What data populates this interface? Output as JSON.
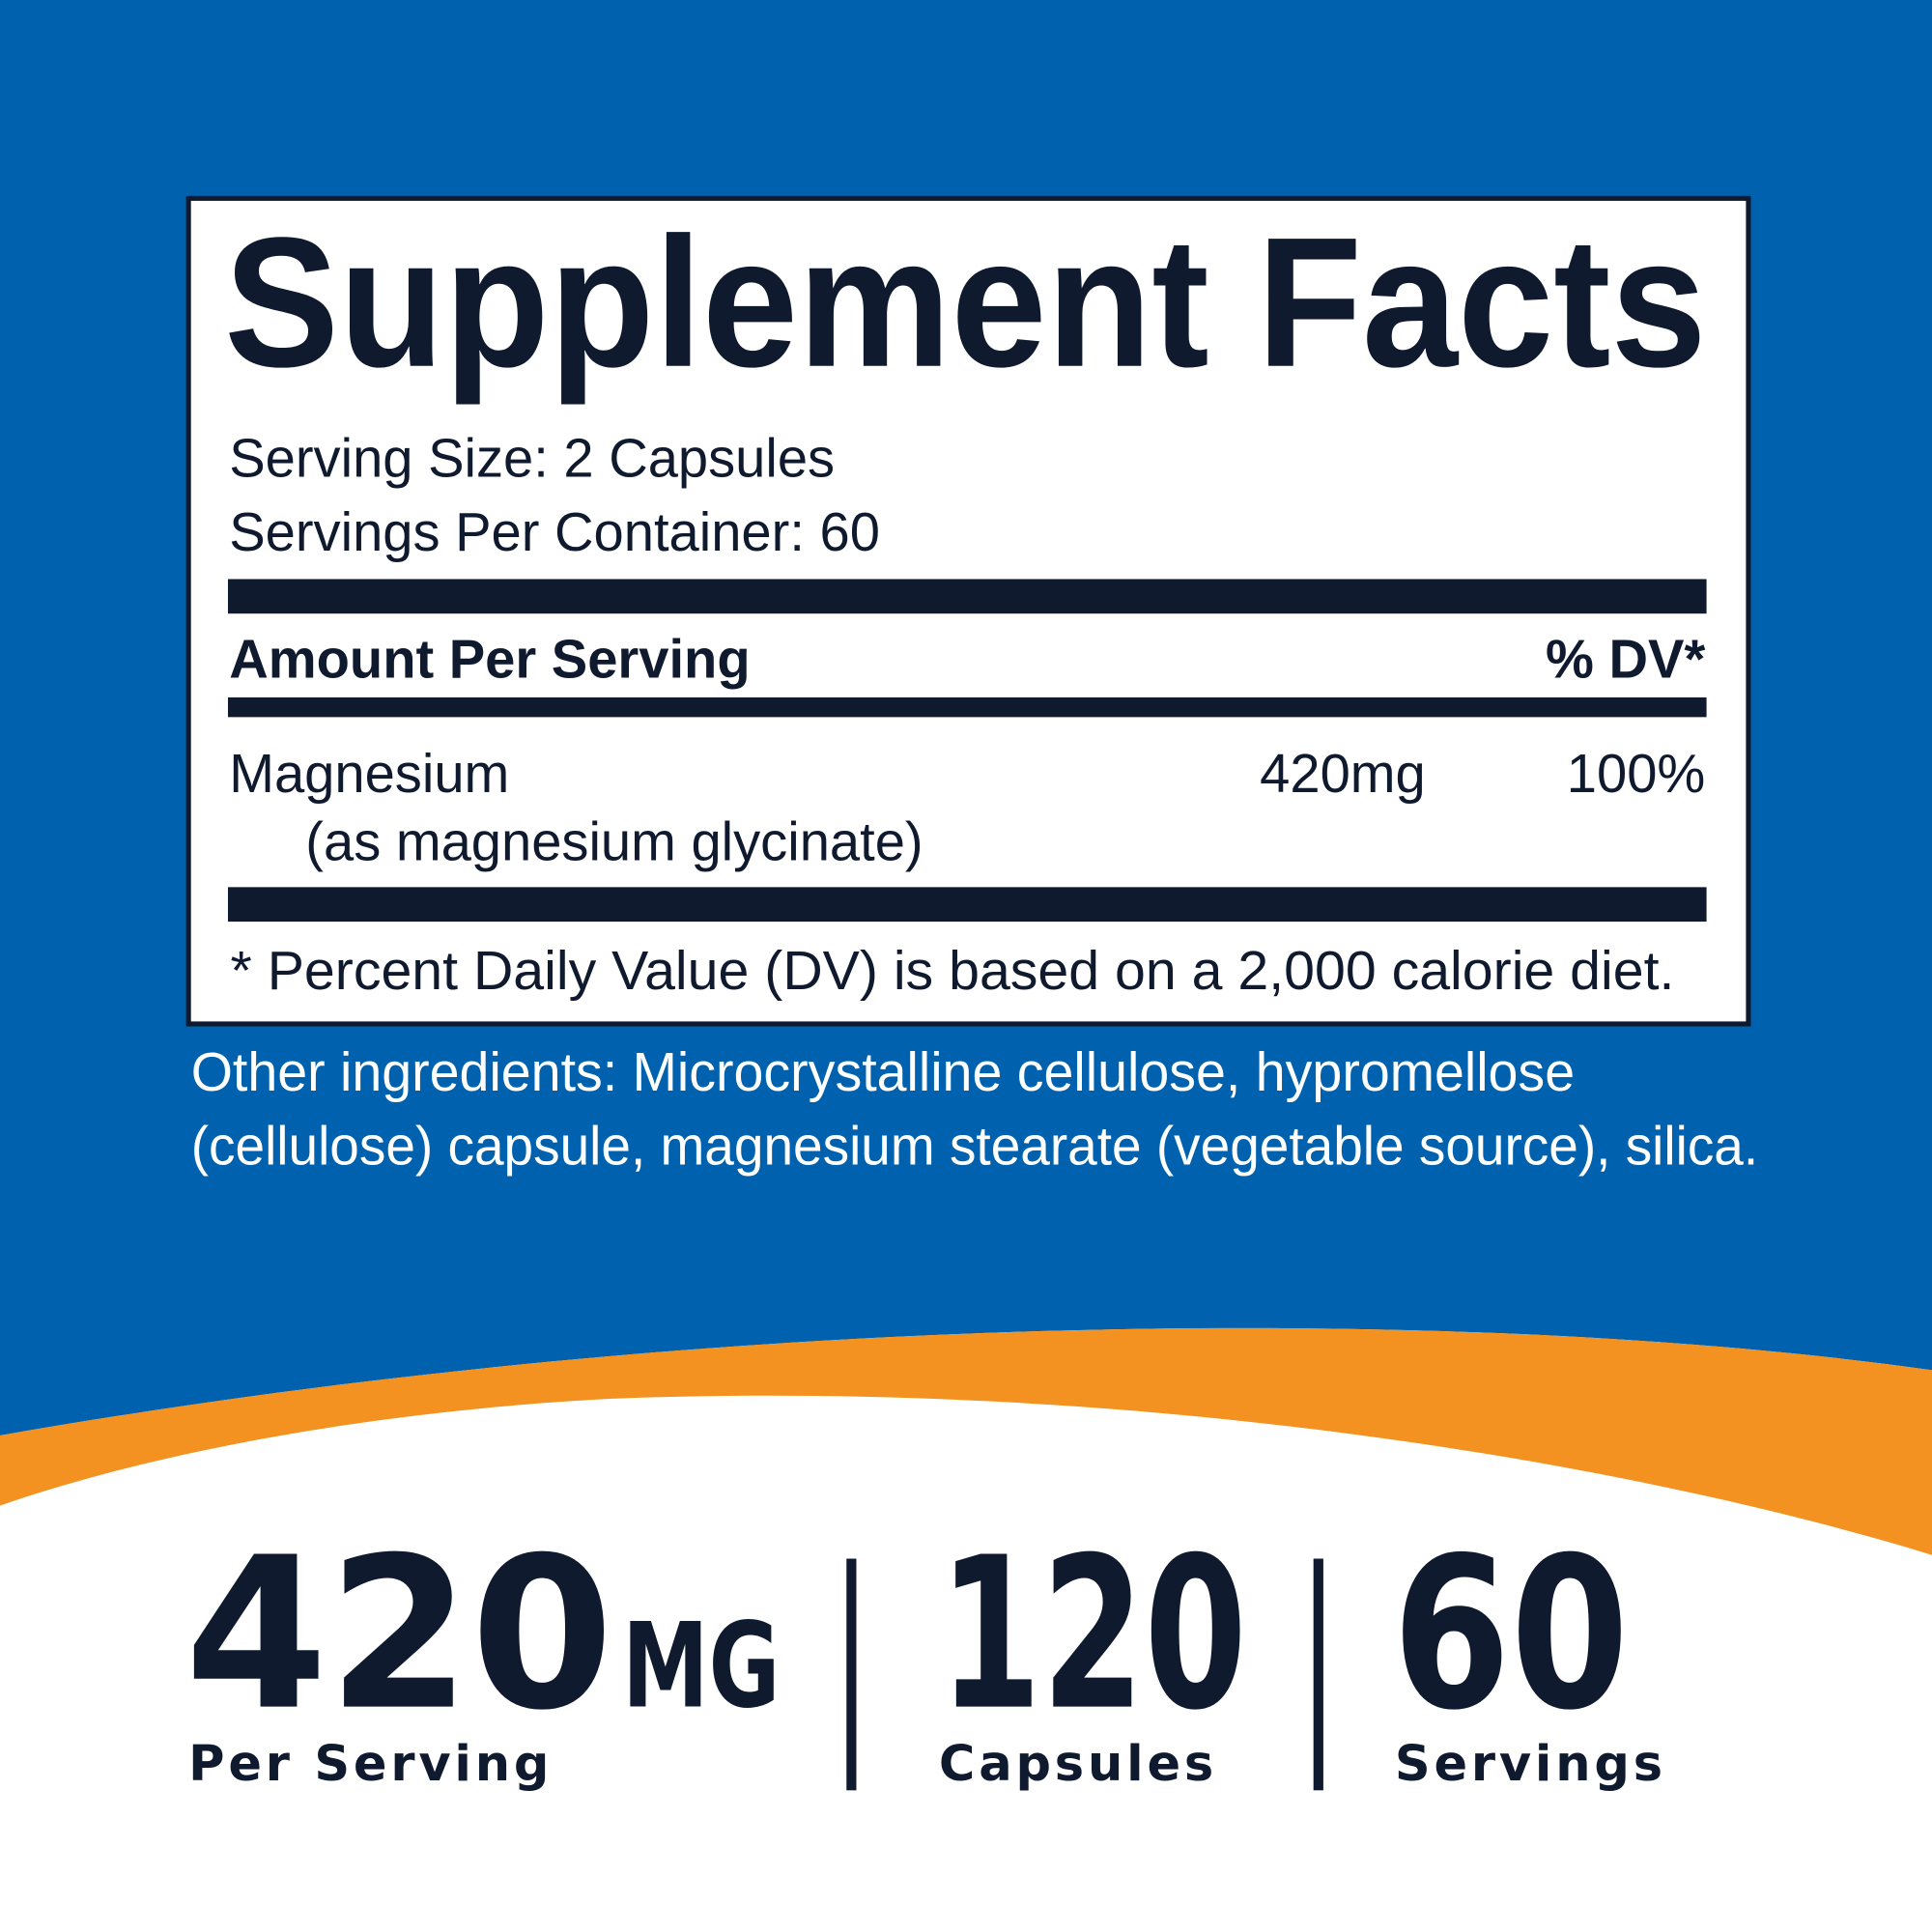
{
  "facts": {
    "title": "Supplement Facts",
    "serving_size": "Serving Size: 2 Capsules",
    "servings_per_container": "Servings Per Container: 60",
    "amount_header": "Amount Per Serving",
    "dv_header": "% DV*",
    "rows": [
      {
        "name": "Magnesium",
        "detail": "(as magnesium glycinate)",
        "amount": "420mg",
        "dv": "100%"
      }
    ],
    "footnote": "* Percent Daily Value (DV) is based on a 2,000 calorie diet."
  },
  "other_ingredients": [
    "Other ingredients: Microcrystalline cellulose, hypromellose",
    "(cellulose) capsule, magnesium stearate (vegetable source), silica."
  ],
  "stats": [
    {
      "number": "420",
      "unit": "MG",
      "label": "Per Serving"
    },
    {
      "number": "120",
      "label": "Capsules"
    },
    {
      "number": "60",
      "label": "Servings"
    }
  ]
}
